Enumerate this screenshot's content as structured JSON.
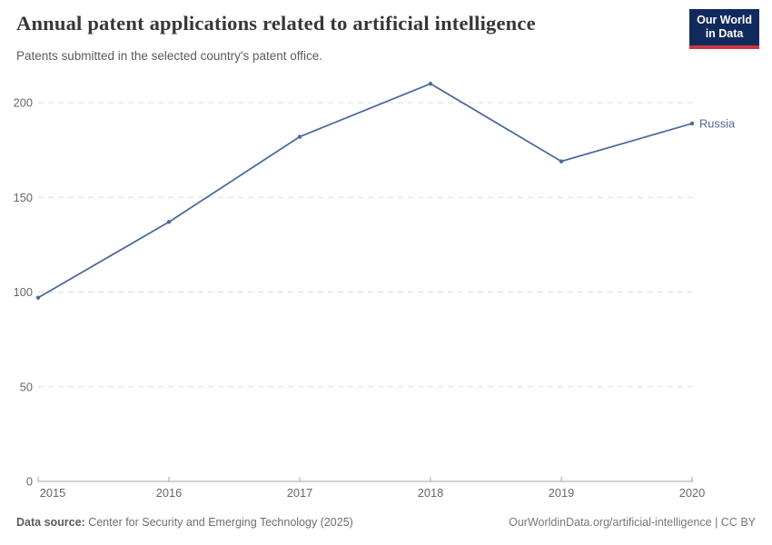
{
  "header": {
    "title": "Annual patent applications related to artificial intelligence",
    "subtitle": "Patents submitted in the selected country's patent office.",
    "logo": {
      "line1": "Our World",
      "line2": "in Data"
    }
  },
  "chart_data": {
    "type": "line",
    "title": "Annual patent applications related to artificial intelligence",
    "x": [
      2015,
      2016,
      2017,
      2018,
      2019,
      2020
    ],
    "series": [
      {
        "name": "Russia",
        "values": [
          97,
          137,
          182,
          210,
          169,
          189
        ],
        "color": "#4c6a9c"
      }
    ],
    "xlabel": "",
    "ylabel": "",
    "ylim": [
      0,
      200
    ],
    "yticks": [
      0,
      50,
      100,
      150,
      200
    ],
    "xticks": [
      2015,
      2016,
      2017,
      2018,
      2019,
      2020
    ],
    "grid": "horizontal-dashed",
    "legend_position": "end-of-line-label"
  },
  "footer": {
    "datasource_label": "Data source:",
    "datasource_value": " Center for Security and Emerging Technology (2025)",
    "attribution": "OurWorldinData.org/artificial-intelligence | CC BY"
  },
  "colors": {
    "accent_line": "#4c6a9c",
    "grid_line": "#dddddd",
    "axis_line": "#a6a6a6",
    "tick_text": "#676767",
    "title_text": "#383636",
    "subtitle_text": "#5b5b5b",
    "logo_bg": "#12295b",
    "logo_red": "#cf3540",
    "footer_text": "#6e6e6e"
  }
}
